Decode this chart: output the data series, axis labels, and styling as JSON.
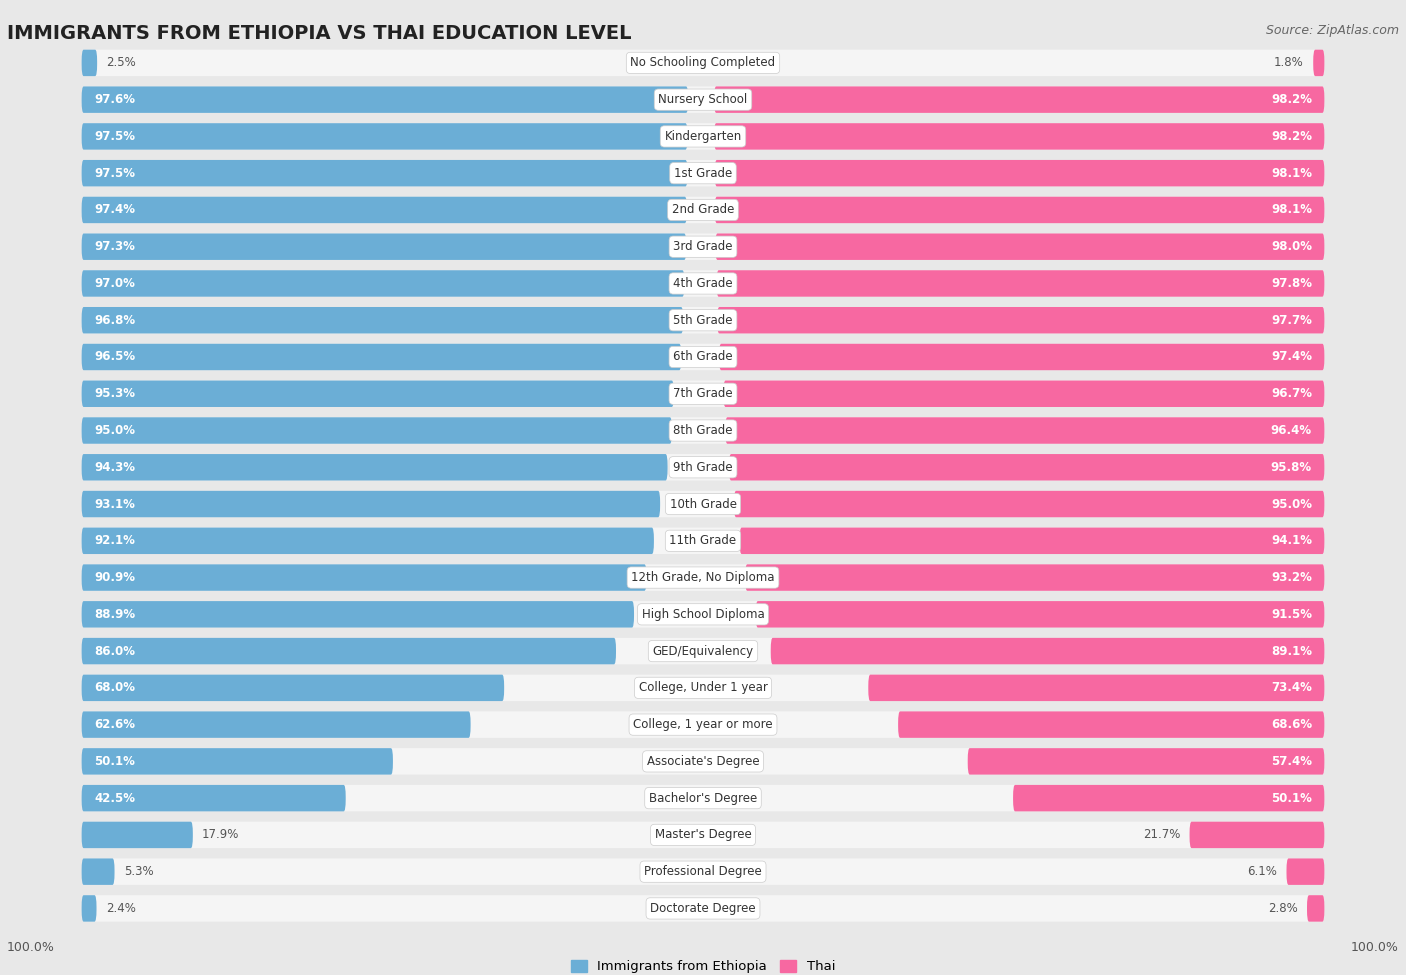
{
  "title": "IMMIGRANTS FROM ETHIOPIA VS THAI EDUCATION LEVEL",
  "source": "Source: ZipAtlas.com",
  "categories": [
    "No Schooling Completed",
    "Nursery School",
    "Kindergarten",
    "1st Grade",
    "2nd Grade",
    "3rd Grade",
    "4th Grade",
    "5th Grade",
    "6th Grade",
    "7th Grade",
    "8th Grade",
    "9th Grade",
    "10th Grade",
    "11th Grade",
    "12th Grade, No Diploma",
    "High School Diploma",
    "GED/Equivalency",
    "College, Under 1 year",
    "College, 1 year or more",
    "Associate's Degree",
    "Bachelor's Degree",
    "Master's Degree",
    "Professional Degree",
    "Doctorate Degree"
  ],
  "ethiopia_values": [
    2.5,
    97.6,
    97.5,
    97.5,
    97.4,
    97.3,
    97.0,
    96.8,
    96.5,
    95.3,
    95.0,
    94.3,
    93.1,
    92.1,
    90.9,
    88.9,
    86.0,
    68.0,
    62.6,
    50.1,
    42.5,
    17.9,
    5.3,
    2.4
  ],
  "thai_values": [
    1.8,
    98.2,
    98.2,
    98.1,
    98.1,
    98.0,
    97.8,
    97.7,
    97.4,
    96.7,
    96.4,
    95.8,
    95.0,
    94.1,
    93.2,
    91.5,
    89.1,
    73.4,
    68.6,
    57.4,
    50.1,
    21.7,
    6.1,
    2.8
  ],
  "ethiopia_color": "#6baed6",
  "thai_color": "#f768a1",
  "row_bg_color": "#f5f5f5",
  "outer_bg_color": "#e8e8e8",
  "label_white": "#ffffff",
  "label_dark": "#555555",
  "legend_ethiopia": "Immigrants from Ethiopia",
  "legend_thai": "Thai",
  "axis_tick": "100.0%",
  "title_fontsize": 14,
  "label_fontsize": 8.5,
  "cat_fontsize": 8.5,
  "source_text": "Source: ZipAtlas.com",
  "white_label_threshold": 30
}
